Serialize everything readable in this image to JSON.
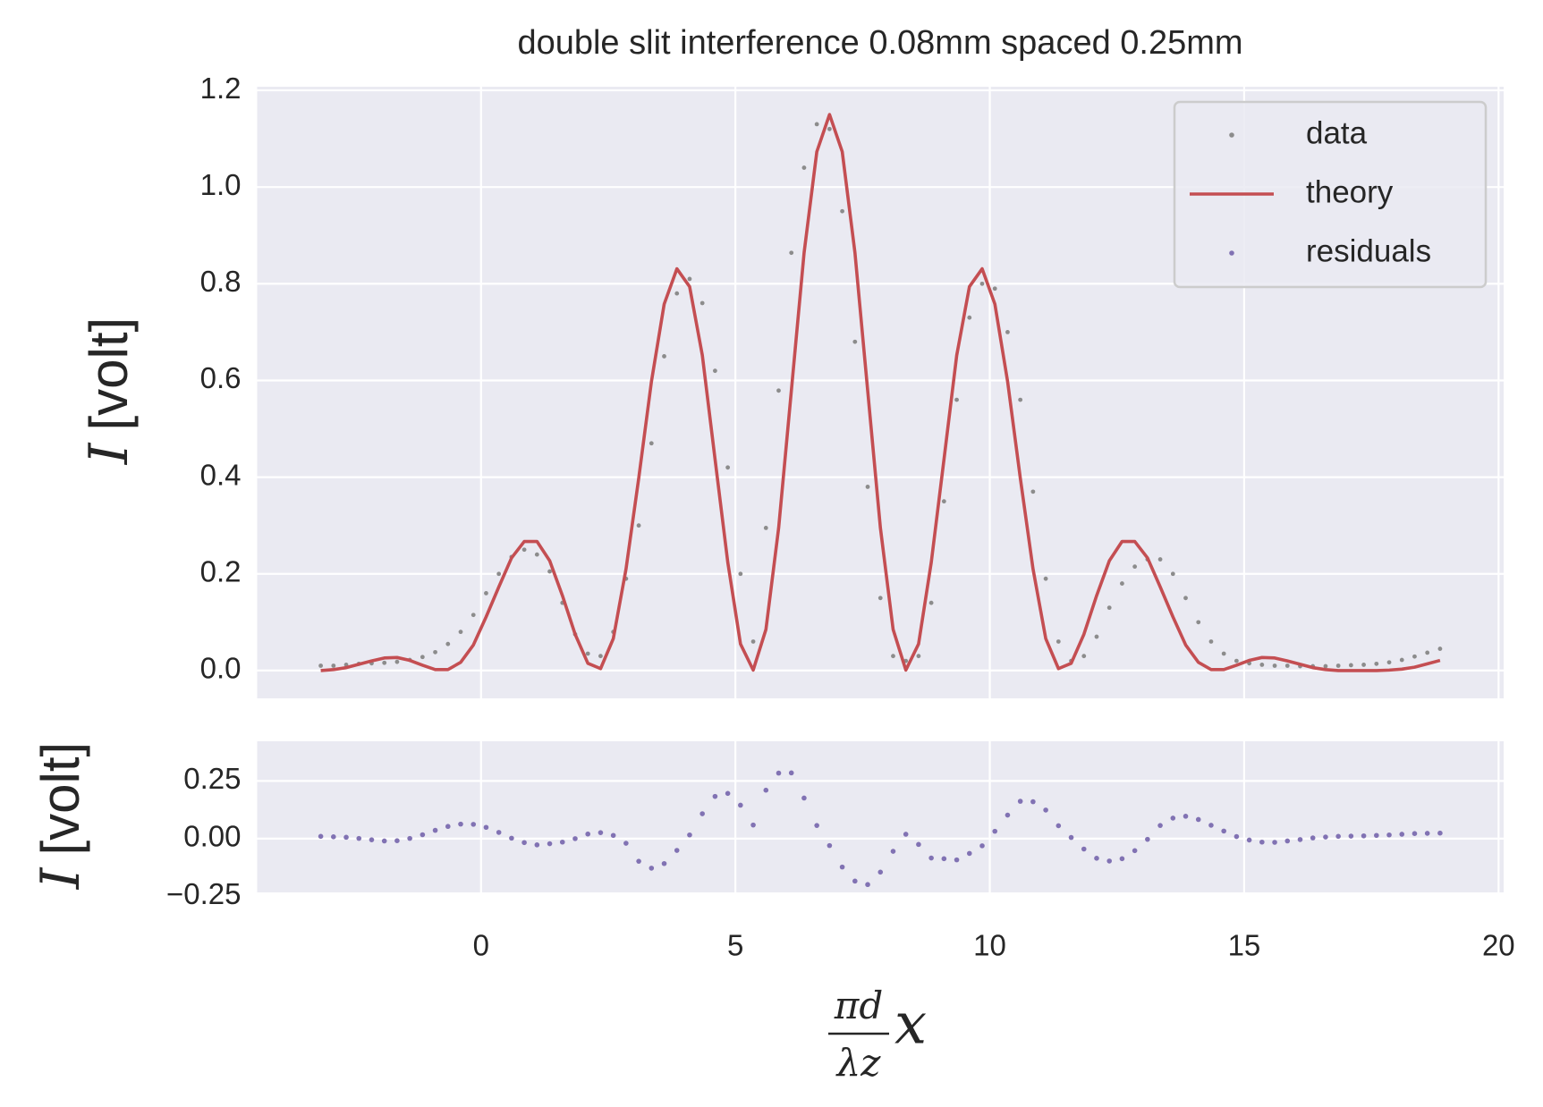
{
  "chart_data": [
    {
      "type": "line",
      "title": "double slit interference 0.08mm spaced 0.25mm",
      "ylabel": {
        "symbol": "I",
        "unit": "[volt]"
      },
      "xlim": [
        -4.4,
        20.1
      ],
      "xticks": [
        0,
        5,
        10,
        15,
        20
      ],
      "show_xtick_labels": false,
      "ylim": [
        -0.0575,
        1.2075
      ],
      "yticks": [
        {
          "value": 0,
          "label": "0.0"
        },
        0.2,
        0.4,
        0.6,
        0.8,
        {
          "value": 1,
          "label": "1.0"
        },
        1.2
      ],
      "grid": true,
      "legend": "upper right",
      "x": [
        -3.15,
        -2.9,
        -2.65,
        -2.4,
        -2.15,
        -1.9,
        -1.65,
        -1.4,
        -1.15,
        -0.9,
        -0.65,
        -0.4,
        -0.15,
        0.1,
        0.35,
        0.6,
        0.85,
        1.1,
        1.35,
        1.6,
        1.85,
        2.1,
        2.35,
        2.6,
        2.85,
        3.1,
        3.35,
        3.6,
        3.85,
        4.1,
        4.35,
        4.6,
        4.85,
        5.1,
        5.35,
        5.6,
        5.85,
        6.1,
        6.35,
        6.6,
        6.85,
        7.1,
        7.35,
        7.6,
        7.85,
        8.1,
        8.35,
        8.6,
        8.85,
        9.1,
        9.35,
        9.6,
        9.85,
        10.1,
        10.35,
        10.6,
        10.85,
        11.1,
        11.35,
        11.6,
        11.85,
        12.1,
        12.35,
        12.6,
        12.85,
        13.1,
        13.35,
        13.6,
        13.85,
        14.1,
        14.35,
        14.6,
        14.85,
        15.1,
        15.35,
        15.6,
        15.85,
        16.1,
        16.35,
        16.6,
        16.85,
        17.1,
        17.35,
        17.6,
        17.85,
        18.1,
        18.35,
        18.6,
        18.85
      ],
      "series": [
        {
          "name": "data",
          "color": "#8c8c8c",
          "style": "points",
          "values": [
            0.01,
            0.01,
            0.012,
            0.014,
            0.015,
            0.016,
            0.018,
            0.022,
            0.028,
            0.038,
            0.055,
            0.08,
            0.115,
            0.16,
            0.2,
            0.235,
            0.25,
            0.24,
            0.205,
            0.14,
            0.075,
            0.035,
            0.03,
            0.08,
            0.19,
            0.3,
            0.47,
            0.65,
            0.78,
            0.81,
            0.76,
            0.62,
            0.42,
            0.2,
            0.06,
            0.295,
            0.579,
            0.864,
            1.04,
            1.13,
            1.12,
            0.95,
            0.68,
            0.38,
            0.15,
            0.03,
            0.02,
            0.03,
            0.14,
            0.35,
            0.56,
            0.73,
            0.8,
            0.79,
            0.7,
            0.56,
            0.37,
            0.19,
            0.06,
            0.02,
            0.03,
            0.07,
            0.13,
            0.18,
            0.215,
            0.23,
            0.23,
            0.2,
            0.15,
            0.1,
            0.06,
            0.035,
            0.02,
            0.015,
            0.012,
            0.01,
            0.01,
            0.009,
            0.009,
            0.009,
            0.01,
            0.011,
            0.012,
            0.014,
            0.017,
            0.022,
            0.029,
            0.037,
            0.045
          ]
        },
        {
          "name": "theory",
          "color": "#c44e52",
          "style": "line",
          "values": [
            0.0,
            0.002,
            0.006,
            0.013,
            0.02,
            0.026,
            0.027,
            0.021,
            0.011,
            0.002,
            0.002,
            0.017,
            0.053,
            0.111,
            0.173,
            0.233,
            0.267,
            0.267,
            0.227,
            0.155,
            0.075,
            0.015,
            0.004,
            0.066,
            0.21,
            0.398,
            0.598,
            0.758,
            0.831,
            0.794,
            0.652,
            0.437,
            0.224,
            0.055,
            0.001,
            0.085,
            0.295,
            0.579,
            0.864,
            1.073,
            1.15,
            1.073,
            0.864,
            0.579,
            0.295,
            0.085,
            0.001,
            0.055,
            0.224,
            0.437,
            0.652,
            0.794,
            0.831,
            0.758,
            0.598,
            0.398,
            0.21,
            0.066,
            0.004,
            0.015,
            0.075,
            0.155,
            0.227,
            0.267,
            0.267,
            0.233,
            0.173,
            0.111,
            0.053,
            0.017,
            0.002,
            0.002,
            0.011,
            0.021,
            0.027,
            0.026,
            0.02,
            0.013,
            0.006,
            0.002,
            0.0,
            0.0,
            0.0,
            0.0,
            0.001,
            0.003,
            0.007,
            0.014,
            0.021
          ]
        }
      ]
    },
    {
      "type": "scatter",
      "ylabel": {
        "symbol": "I",
        "unit": "[volt]"
      },
      "xlabel": {
        "numerator": "πd",
        "denominator": "λz",
        "variable": "x"
      },
      "xlim": [
        -4.4,
        20.1
      ],
      "xticks": [
        0,
        5,
        10,
        15,
        20
      ],
      "show_xtick_labels": true,
      "ylim": [
        -0.233,
        0.422
      ],
      "yticks": [
        {
          "value": -0.25,
          "label": "−0.25"
        },
        {
          "value": 0,
          "label": "0.00"
        },
        0.25
      ],
      "grid": true,
      "x": [
        -3.15,
        -2.9,
        -2.65,
        -2.4,
        -2.15,
        -1.9,
        -1.65,
        -1.4,
        -1.15,
        -0.9,
        -0.65,
        -0.4,
        -0.15,
        0.1,
        0.35,
        0.6,
        0.85,
        1.1,
        1.35,
        1.6,
        1.85,
        2.1,
        2.35,
        2.6,
        2.85,
        3.1,
        3.35,
        3.6,
        3.85,
        4.1,
        4.35,
        4.6,
        4.85,
        5.1,
        5.35,
        5.6,
        5.85,
        6.1,
        6.35,
        6.6,
        6.85,
        7.1,
        7.35,
        7.6,
        7.85,
        8.1,
        8.35,
        8.6,
        8.85,
        9.1,
        9.35,
        9.6,
        9.85,
        10.1,
        10.35,
        10.6,
        10.85,
        11.1,
        11.35,
        11.6,
        11.85,
        12.1,
        12.35,
        12.6,
        12.85,
        13.1,
        13.35,
        13.6,
        13.85,
        14.1,
        14.35,
        14.6,
        14.85,
        15.1,
        15.35,
        15.6,
        15.85,
        16.1,
        16.35,
        16.6,
        16.85,
        17.1,
        17.35,
        17.6,
        17.85,
        18.1,
        18.35,
        18.6,
        18.85
      ],
      "series": [
        {
          "name": "residuals",
          "color": "#8172b3",
          "style": "points",
          "values": [
            0.01,
            0.008,
            0.006,
            0.001,
            -0.005,
            -0.01,
            -0.009,
            0.001,
            0.017,
            0.036,
            0.053,
            0.063,
            0.062,
            0.049,
            0.027,
            0.002,
            -0.017,
            -0.027,
            -0.022,
            -0.015,
            0.0,
            0.02,
            0.026,
            0.014,
            -0.02,
            -0.098,
            -0.128,
            -0.108,
            -0.051,
            0.016,
            0.108,
            0.183,
            0.196,
            0.145,
            0.059,
            0.21,
            0.284,
            0.285,
            0.176,
            0.057,
            -0.03,
            -0.123,
            -0.184,
            -0.199,
            -0.145,
            -0.055,
            0.019,
            -0.025,
            -0.084,
            -0.087,
            -0.092,
            -0.064,
            -0.031,
            0.032,
            0.102,
            0.162,
            0.16,
            0.124,
            0.056,
            0.005,
            -0.045,
            -0.085,
            -0.097,
            -0.087,
            -0.052,
            -0.003,
            0.057,
            0.089,
            0.097,
            0.083,
            0.058,
            0.033,
            0.009,
            -0.006,
            -0.015,
            -0.016,
            -0.01,
            -0.004,
            0.003,
            0.007,
            0.01,
            0.011,
            0.012,
            0.014,
            0.016,
            0.019,
            0.022,
            0.023,
            0.024
          ]
        }
      ]
    }
  ]
}
